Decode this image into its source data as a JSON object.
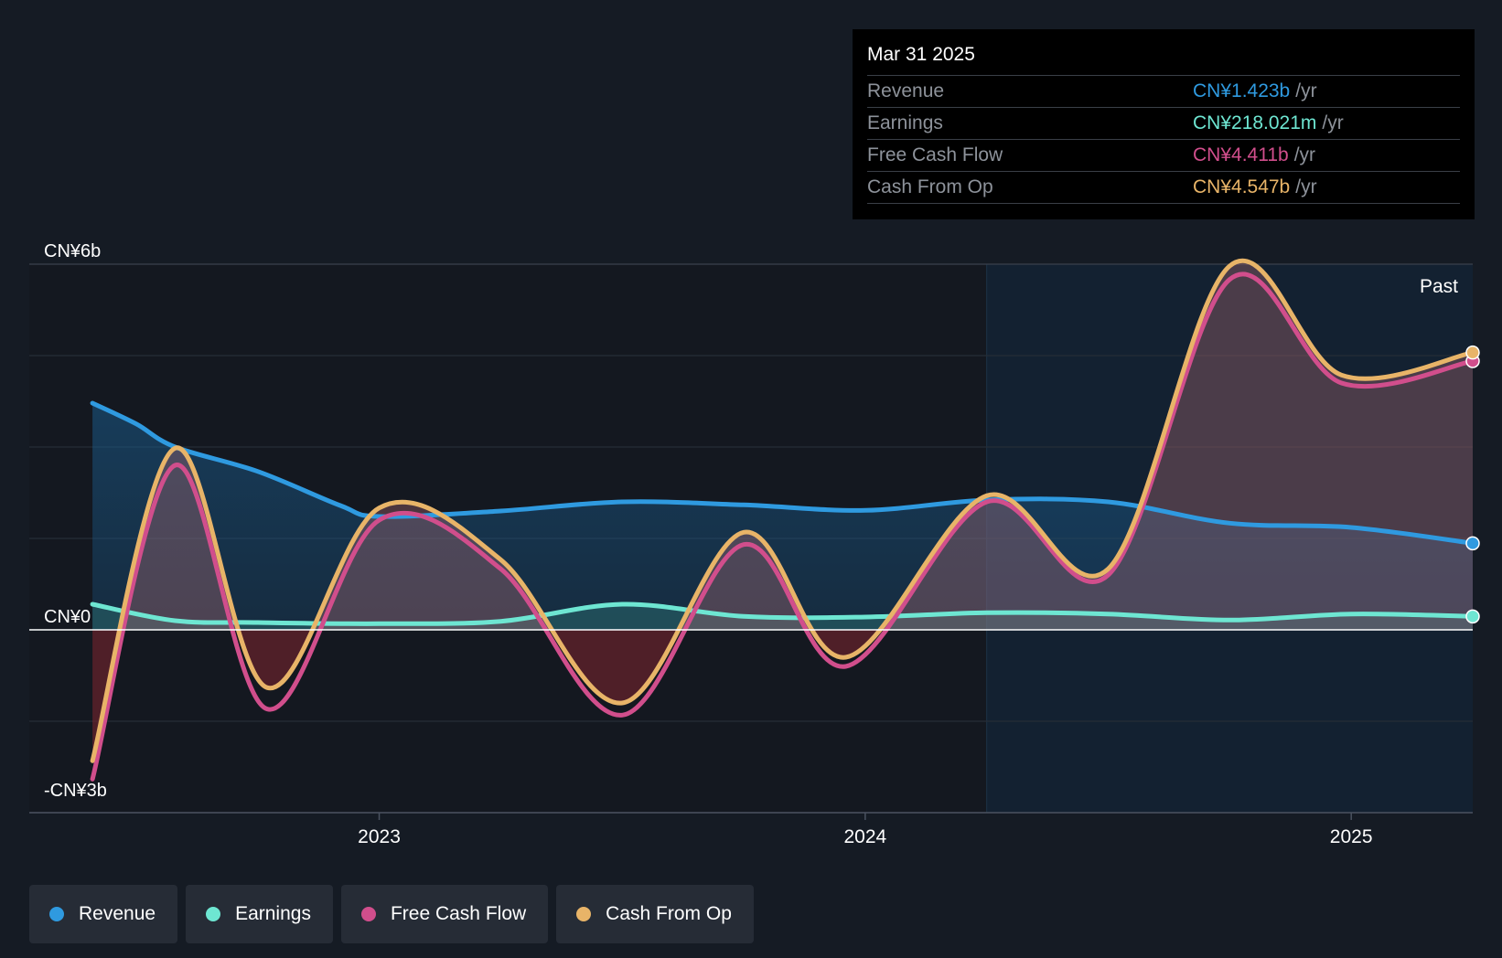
{
  "tooltip": {
    "date": "Mar 31 2025",
    "unit": "/yr",
    "rows": [
      {
        "label": "Revenue",
        "value": "CN¥1.423b",
        "color": "#2f9ae0"
      },
      {
        "label": "Earnings",
        "value": "CN¥218.021m",
        "color": "#6ee6d2"
      },
      {
        "label": "Free Cash Flow",
        "value": "CN¥4.411b",
        "color": "#d14e8c"
      },
      {
        "label": "Cash From Op",
        "value": "CN¥4.547b",
        "color": "#e8b468"
      }
    ]
  },
  "legend": [
    {
      "label": "Revenue",
      "color": "#2f9ae0"
    },
    {
      "label": "Earnings",
      "color": "#6ee6d2"
    },
    {
      "label": "Free Cash Flow",
      "color": "#d14e8c"
    },
    {
      "label": "Cash From Op",
      "color": "#e8b468"
    }
  ],
  "chart_data": {
    "type": "line",
    "past_label": "Past",
    "y_tick_labels": [
      {
        "value": 6,
        "label": "CN¥6b"
      },
      {
        "value": 0,
        "label": "CN¥0"
      },
      {
        "value": -3,
        "label": "-CN¥3b"
      }
    ],
    "ylim": [
      -3,
      6
    ],
    "xlim": [
      2022.28,
      2025.25
    ],
    "x_ticks": [
      {
        "value": 2023.0,
        "label": "2023"
      },
      {
        "value": 2024.0,
        "label": "2024"
      },
      {
        "value": 2025.0,
        "label": "2025"
      }
    ],
    "past_start": 2024.25,
    "grid": true,
    "series": [
      {
        "name": "Revenue",
        "color": "#2f9ae0",
        "x": [
          2022.41,
          2022.5,
          2022.58,
          2022.75,
          2022.92,
          2023.0,
          2023.25,
          2023.5,
          2023.75,
          2024.0,
          2024.25,
          2024.5,
          2024.75,
          2025.0,
          2025.25
        ],
        "y": [
          3.72,
          3.38,
          3.0,
          2.6,
          2.04,
          1.86,
          1.95,
          2.1,
          2.05,
          1.96,
          2.13,
          2.1,
          1.75,
          1.68,
          1.42
        ]
      },
      {
        "name": "Earnings",
        "color": "#6ee6d2",
        "x": [
          2022.41,
          2022.58,
          2022.75,
          2023.0,
          2023.25,
          2023.5,
          2023.75,
          2024.0,
          2024.25,
          2024.5,
          2024.75,
          2025.0,
          2025.25
        ],
        "y": [
          0.42,
          0.15,
          0.12,
          0.1,
          0.14,
          0.42,
          0.22,
          0.21,
          0.28,
          0.26,
          0.16,
          0.26,
          0.22
        ]
      },
      {
        "name": "Free Cash Flow",
        "color": "#d14e8c",
        "x": [
          2022.41,
          2022.58,
          2022.77,
          2023.0,
          2023.25,
          2023.5,
          2023.75,
          2023.96,
          2024.25,
          2024.5,
          2024.75,
          2024.98,
          2025.25
        ],
        "y": [
          -2.45,
          2.7,
          -1.3,
          1.8,
          1.0,
          -1.4,
          1.4,
          -0.6,
          2.1,
          0.9,
          5.75,
          4.05,
          4.41
        ]
      },
      {
        "name": "Cash From Op",
        "color": "#e8b468",
        "x": [
          2022.41,
          2022.58,
          2022.77,
          2023.0,
          2023.25,
          2023.5,
          2023.75,
          2023.96,
          2024.25,
          2024.5,
          2024.75,
          2024.98,
          2025.25
        ],
        "y": [
          -2.15,
          2.98,
          -0.95,
          2.0,
          1.15,
          -1.2,
          1.6,
          -0.45,
          2.2,
          1.0,
          5.97,
          4.18,
          4.55
        ]
      }
    ]
  }
}
